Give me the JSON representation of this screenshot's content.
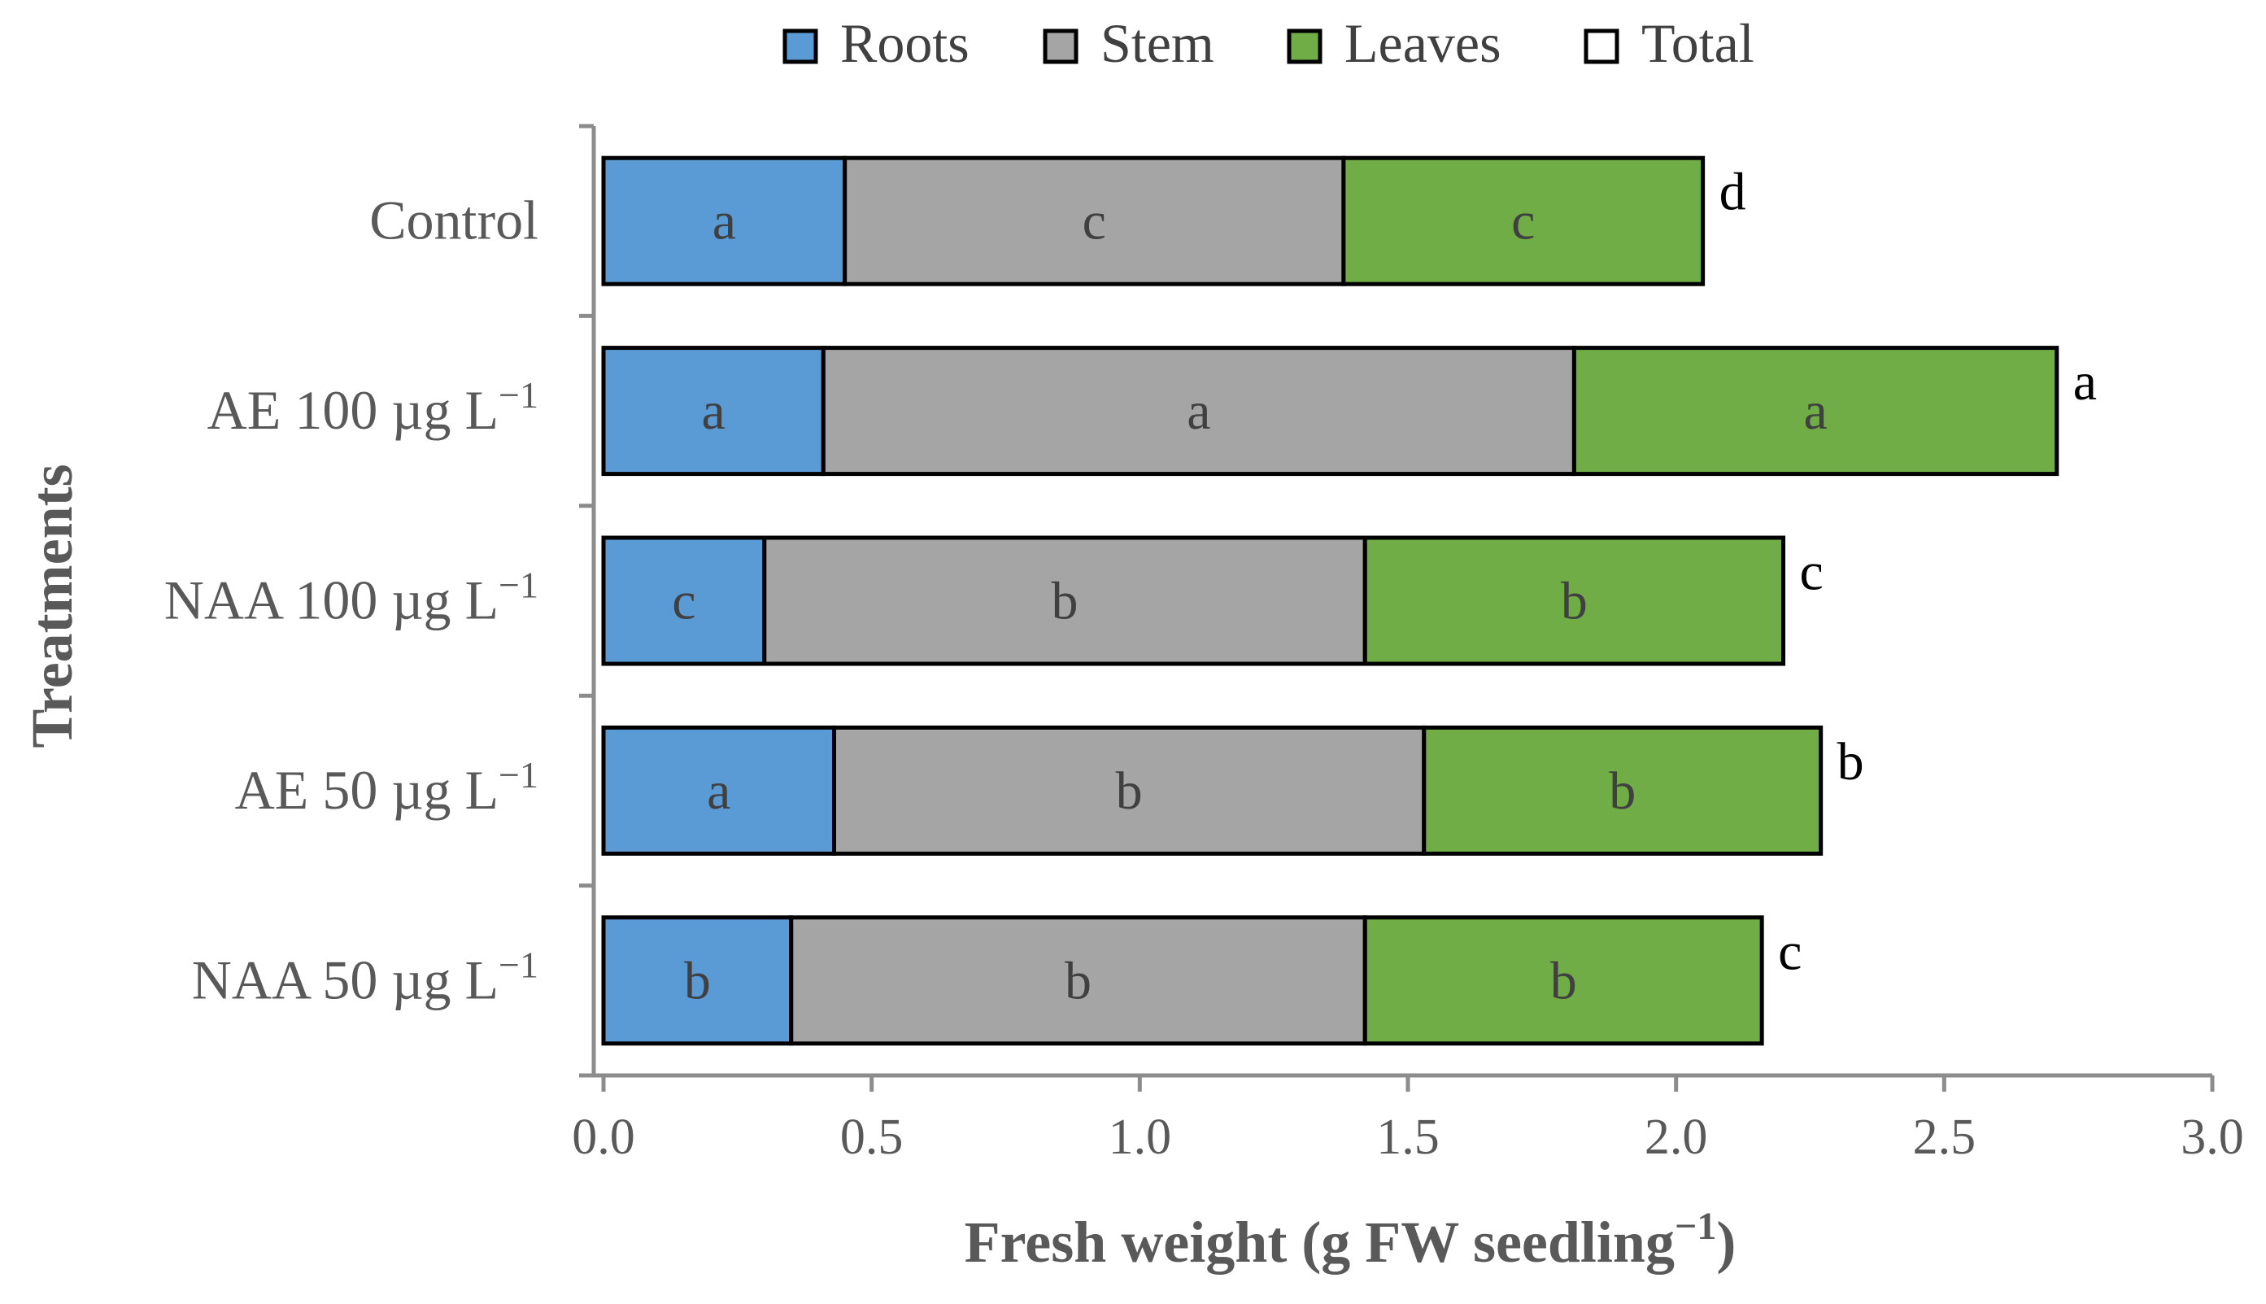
{
  "chart_data": {
    "type": "bar",
    "orientation": "horizontal",
    "stacked": true,
    "categories": [
      "Control",
      "AE 100 µg L",
      "NAA 100 µg L",
      "AE 50 µg L",
      "NAA 50 µg L"
    ],
    "category_superscript": "−1",
    "series": [
      {
        "name": "Roots",
        "color": "#5b9bd5",
        "values": [
          0.45,
          0.41,
          0.3,
          0.43,
          0.35
        ],
        "labels": [
          "a",
          "a",
          "c",
          "a",
          "b"
        ]
      },
      {
        "name": "Stem",
        "color": "#a5a5a5",
        "values": [
          0.93,
          1.4,
          1.12,
          1.1,
          1.07
        ],
        "labels": [
          "c",
          "a",
          "b",
          "b",
          "b"
        ]
      },
      {
        "name": "Leaves",
        "color": "#70ad47",
        "values": [
          0.67,
          0.9,
          0.78,
          0.74,
          0.74
        ],
        "labels": [
          "c",
          "a",
          "b",
          "b",
          "b"
        ]
      }
    ],
    "total": {
      "name": "Total",
      "color": "#ffffff",
      "values": [
        2.05,
        2.71,
        2.2,
        2.27,
        2.16
      ],
      "labels": [
        "d",
        "a",
        "c",
        "b",
        "c"
      ]
    },
    "xlabel": "Fresh weight (g FW seedling",
    "xlabel_superscript": "−1",
    "xlabel_suffix": ")",
    "ylabel": "Treatments",
    "xlim": [
      0.0,
      3.0
    ],
    "xticks": [
      0.0,
      0.5,
      1.0,
      1.5,
      2.0,
      2.5,
      3.0
    ],
    "xtick_labels": [
      "0.0",
      "0.5",
      "1.0",
      "1.5",
      "2.0",
      "2.5",
      "3.0"
    ],
    "legend_position": "top-center",
    "grid": false
  }
}
